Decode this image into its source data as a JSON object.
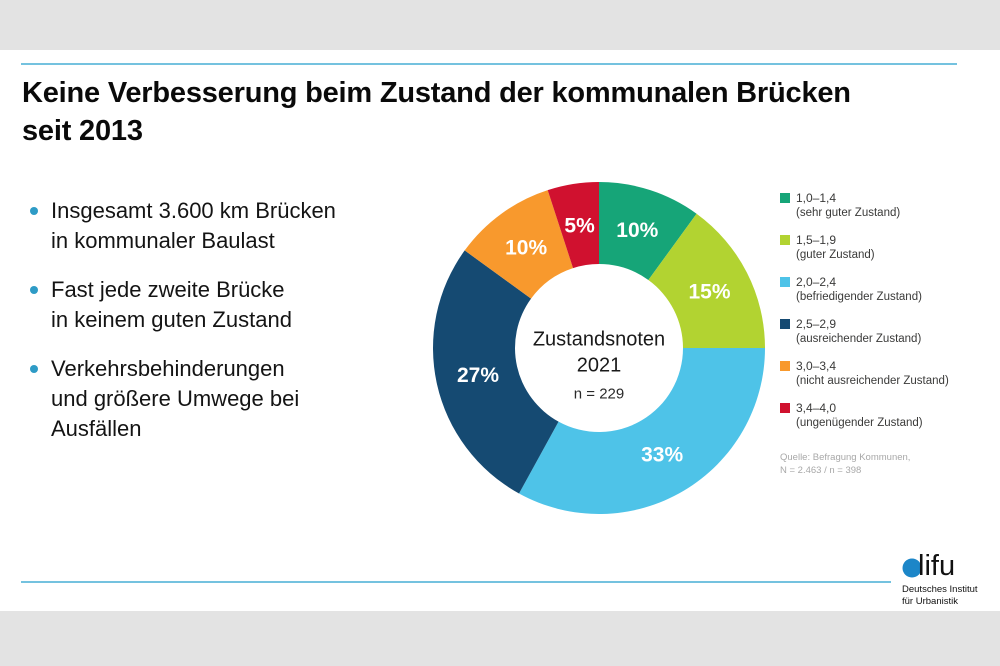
{
  "page": {
    "background": "#e3e3e3",
    "accent_line_color": "#74C2DF",
    "bullet_color": "#2E9BC6"
  },
  "slide": {
    "title": "Keine Verbesserung beim Zustand der kommunalen Brücken\nseit 2013"
  },
  "bullets": [
    "Insgesamt 3.600 km Brücken\nin kommunaler Baulast",
    "Fast jede zweite Brücke\nin keinem guten Zustand",
    "Verkehrsbehinderungen\nund größere Umwege bei\nAusfällen"
  ],
  "chart_data": {
    "type": "pie",
    "variant": "donut",
    "title": "Zustandsnoten 2021",
    "center_title": "Zustandsnoten",
    "center_year": "2021",
    "center_sample": "n = 229",
    "unit": "%",
    "start_angle_deg": 0,
    "direction": "clockwise",
    "legend_position": "right",
    "segments": [
      {
        "range": "1,0–1,4",
        "description": "(sehr guter Zustand)",
        "value_pct": 10,
        "color": "#16A578"
      },
      {
        "range": "1,5–1,9",
        "description": "(guter Zustand)",
        "value_pct": 15,
        "color": "#B2D331"
      },
      {
        "range": "2,0–2,4",
        "description": "(befriedigender Zustand)",
        "value_pct": 33,
        "color": "#4EC3E8"
      },
      {
        "range": "2,5–2,9",
        "description": "(ausreichender Zustand)",
        "value_pct": 27,
        "color": "#154A72"
      },
      {
        "range": "3,0–3,4",
        "description": "(nicht ausreichender Zustand)",
        "value_pct": 10,
        "color": "#F8992D"
      },
      {
        "range": "3,4–4,0",
        "description": "(ungenügender Zustand)",
        "value_pct": 5,
        "color": "#D0112F"
      }
    ]
  },
  "source": {
    "text": "Quelle: Befragung Kommunen,\nN = 2.463 / n = 398"
  },
  "logo": {
    "wordmark": "difu",
    "letters": "lifu",
    "dot_color": "#1C86C8",
    "tagline": "Deutsches Institut\nfür Urbanistik"
  }
}
